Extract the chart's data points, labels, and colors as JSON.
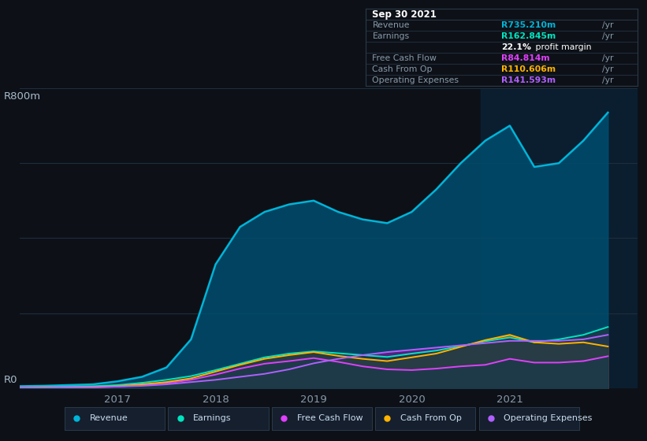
{
  "bg_color": "#0d1117",
  "plot_bg_color": "#0d1117",
  "plot_area_bg": "#0d1820",
  "grid_color": "#1e2d3d",
  "title_label": "R800m",
  "zero_label": "R0",
  "x_ticks": [
    2017,
    2018,
    2019,
    2020,
    2021
  ],
  "ylim": [
    0,
    800
  ],
  "xlim_start": 2016.0,
  "xlim_end": 2022.3,
  "highlight_x_start": 2020.7,
  "highlight_x_end": 2022.3,
  "x_data": [
    2016.0,
    2016.25,
    2016.5,
    2016.75,
    2017.0,
    2017.25,
    2017.5,
    2017.75,
    2018.0,
    2018.25,
    2018.5,
    2018.75,
    2019.0,
    2019.25,
    2019.5,
    2019.75,
    2020.0,
    2020.25,
    2020.5,
    2020.75,
    2021.0,
    2021.25,
    2021.5,
    2021.75,
    2022.0
  ],
  "revenue": [
    5,
    6,
    8,
    10,
    18,
    30,
    55,
    130,
    330,
    430,
    470,
    490,
    500,
    470,
    450,
    440,
    470,
    530,
    600,
    660,
    700,
    590,
    600,
    660,
    735
  ],
  "earnings": [
    2,
    3,
    4,
    5,
    8,
    14,
    22,
    32,
    48,
    65,
    82,
    92,
    98,
    93,
    88,
    83,
    92,
    100,
    112,
    125,
    135,
    122,
    130,
    142,
    163
  ],
  "free_cash_flow": [
    1,
    1,
    2,
    2,
    4,
    8,
    13,
    22,
    36,
    52,
    65,
    72,
    80,
    70,
    58,
    50,
    48,
    52,
    58,
    62,
    78,
    68,
    68,
    72,
    85
  ],
  "cash_from_op": [
    1,
    2,
    2,
    3,
    5,
    10,
    16,
    26,
    44,
    62,
    78,
    88,
    96,
    86,
    78,
    72,
    82,
    92,
    110,
    128,
    142,
    122,
    118,
    122,
    111
  ],
  "operating_expenses": [
    1,
    1,
    2,
    2,
    4,
    6,
    10,
    16,
    22,
    30,
    38,
    50,
    66,
    78,
    88,
    96,
    102,
    108,
    114,
    120,
    126,
    126,
    126,
    130,
    142
  ],
  "revenue_line_color": "#00b4d8",
  "revenue_fill_color": "#004d6e",
  "earnings_line_color": "#00e5c0",
  "earnings_fill_color": "#005a6e",
  "fcf_line_color": "#e040fb",
  "fcf_fill_color": "#555566",
  "cashop_line_color": "#ffb300",
  "cashop_fill_color": "#b35a00",
  "opex_line_color": "#b060ff",
  "opex_fill_color": "#5a2080",
  "info_bg": "#0d1117",
  "info_border": "#2a3a4a",
  "info_date": "Sep 30 2021",
  "info_rows": [
    {
      "label": "Revenue",
      "value": "R735.210m",
      "color": "#00b4d8"
    },
    {
      "label": "Earnings",
      "value": "R162.845m",
      "color": "#00e5c0"
    },
    {
      "label": "",
      "value": "22.1% profit margin",
      "color": "white"
    },
    {
      "label": "Free Cash Flow",
      "value": "R84.814m",
      "color": "#e040fb"
    },
    {
      "label": "Cash From Op",
      "value": "R110.606m",
      "color": "#ffb300"
    },
    {
      "label": "Operating Expenses",
      "value": "R141.593m",
      "color": "#b060ff"
    }
  ],
  "legend_items": [
    "Revenue",
    "Earnings",
    "Free Cash Flow",
    "Cash From Op",
    "Operating Expenses"
  ],
  "legend_colors": [
    "#00b4d8",
    "#00e5c0",
    "#e040fb",
    "#ffb300",
    "#b060ff"
  ]
}
